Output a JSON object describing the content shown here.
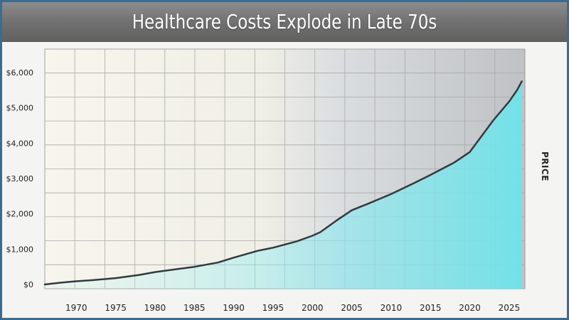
{
  "page": {
    "title": "Healthcare Costs Explode in Late 70s"
  },
  "colors": {
    "frame": "#3c6b8e",
    "title_bar": "#707070",
    "line": "#2f3b40",
    "fill": "#7fe6ec"
  },
  "chart_data": {
    "type": "area",
    "title": "Healthcare Costs Explode in Late 70s",
    "xlabel": "",
    "ylabel": "PRICE",
    "grid": true,
    "xlim": [
      1966,
      2027
    ],
    "ylim": [
      0,
      6000
    ],
    "x_ticks": [
      1970,
      1975,
      1980,
      1985,
      1990,
      1995,
      2000,
      2005,
      2010,
      2015,
      2020,
      2025
    ],
    "y_ticks": [
      0,
      1000,
      2000,
      3000,
      4000,
      5000,
      6000
    ],
    "y_tick_labels": [
      "$0",
      "$1,000",
      "$2,000",
      "$3,000",
      "$4,000",
      "$5,000",
      "$6,000"
    ],
    "series": [
      {
        "x": [
          1966,
          1968,
          1970,
          1972,
          1975,
          1978,
          1980,
          1983,
          1985,
          1988,
          1990,
          1993,
          1995,
          1998,
          2000,
          2001,
          2003,
          2005,
          2007,
          2010,
          2013,
          2015,
          2018,
          2020,
          2023,
          2025,
          2026,
          2026.6
        ],
        "values": [
          0,
          50,
          90,
          120,
          180,
          270,
          350,
          440,
          500,
          620,
          760,
          950,
          1040,
          1220,
          1380,
          1480,
          1800,
          2100,
          2280,
          2560,
          2880,
          3100,
          3450,
          3750,
          4650,
          5180,
          5500,
          5750
        ]
      }
    ]
  }
}
